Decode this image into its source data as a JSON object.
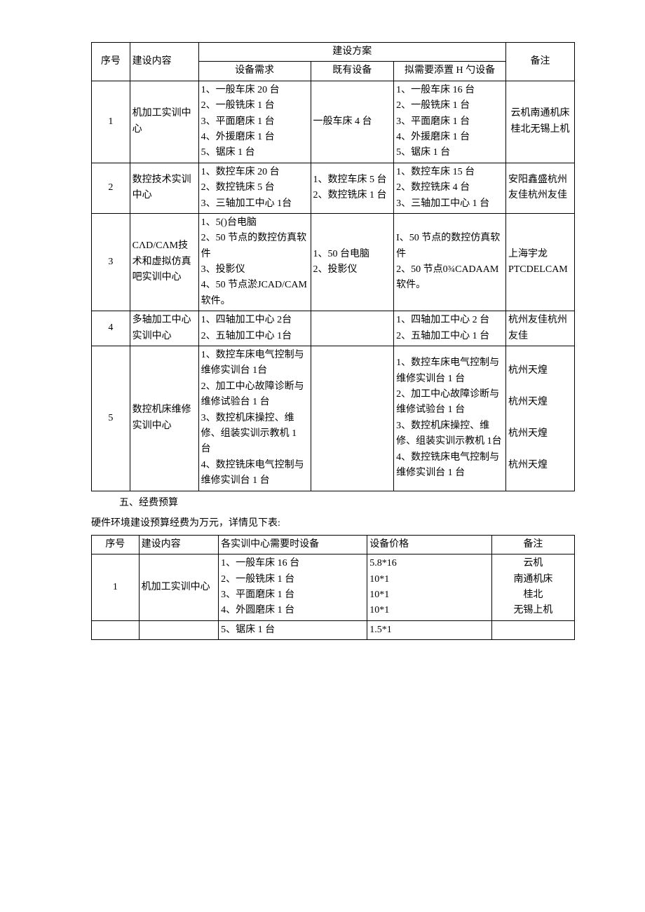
{
  "table1": {
    "header": {
      "seq": "序号",
      "content": "建设内容",
      "plan": "建设方案",
      "need": "设备需求",
      "have": "既有设备",
      "add": "拟需要添置 H 勺设备",
      "note": "备注"
    },
    "rows": [
      {
        "seq": "1",
        "content": "机加工实训中心",
        "need": "1、一般车床 20 台\n2、一般铣床 1 台\n3、平面磨床 1 台\n4、外援磨床 1 台\n5、锯床 1 台",
        "have": "一般车床 4 台",
        "add": "1、一般车床 16 台\n2、一般铣床 1 台\n3、平面磨床 1 台\n4、外援磨床 1 台\n5、锯床 1 台",
        "note": "云机南通机床桂北无锡上机"
      },
      {
        "seq": "2",
        "content": "数控技术实训中心",
        "need": "1、数控车床 20 台\n2、数控铣床 5 台\n3、三轴加工中心 1台",
        "have": "1、数控车床 5 台\n2、数控铣床 1 台",
        "add": "1、数控车床 15 台\n2、数控铣床 4 台\n3、三轴加工中心 1 台",
        "note": "安阳鑫盛杭州友佳杭州友佳"
      },
      {
        "seq": "3",
        "content": "CΛD/CΛM技术和虚拟仿真吧实训中心",
        "need": "1、5()台电脑\n2、50 节点的数控仿真软件\n3、投影仪\n4、50 节点淤JCAD/CAM 软件。",
        "have": "1、50 台电脑\n2、投影仪",
        "add": "I、50 节点的数控仿真软件\n2、50 节点0¾CADAAM 软件。",
        "note": "上海宇龙PTCDELCAM"
      },
      {
        "seq": "4",
        "content": "多轴加工中心实训中心",
        "need": "1、四轴加工中心 2台\n2、五轴加工中心 1台",
        "have": "",
        "add": "1、四轴加工中心 2 台\n2、五轴加工中心 1 台",
        "note": "杭州友佳杭州友佳"
      },
      {
        "seq": "5",
        "content": "数控机床维修实训中心",
        "need": "1、数控车床电气控制与维修实训台 1台\n2、加工中心故障诊断与维修试验台 1 台\n3、数控机床操控、维修、组装实训示教机 1 台\n4、数控铣床电气控制与维修实训台 1 台",
        "have": "",
        "add": "1、数控车床电气控制与维修实训台 1 台\n2、加工中心故障诊断与维修试验台 1 台\n3、数控机床操控、维修、组装实训示教机 1台\n4、数控铣床电气控制与维修实训台 1 台",
        "note": "杭州天煌\n\n杭州天煌\n\n杭州天煌\n\n杭州天煌"
      }
    ]
  },
  "section5_title": "五、经费预算",
  "section5_text": "硬件环境建设预算经费为万元，详情见下表:",
  "table2": {
    "header": {
      "seq": "序号",
      "content": "建设内容",
      "equip": "各实训中心需要时设备",
      "price": "设备价格",
      "note": "备注"
    },
    "rows": [
      {
        "seq": "1",
        "content": "机加工实训中心",
        "equip": "1、一般车床 16 台\n2、一般铣床 1 台\n3、平面磨床 1 台\n4、外圆磨床 1 台",
        "price": "5.8*16\n10*1\n10*1\n10*1",
        "note": "云机\n南通机床\n桂北\n无锡上机"
      },
      {
        "seq": "",
        "content": "",
        "equip": "5、锯床 1 台",
        "price": "1.5*1",
        "note": ""
      }
    ]
  }
}
